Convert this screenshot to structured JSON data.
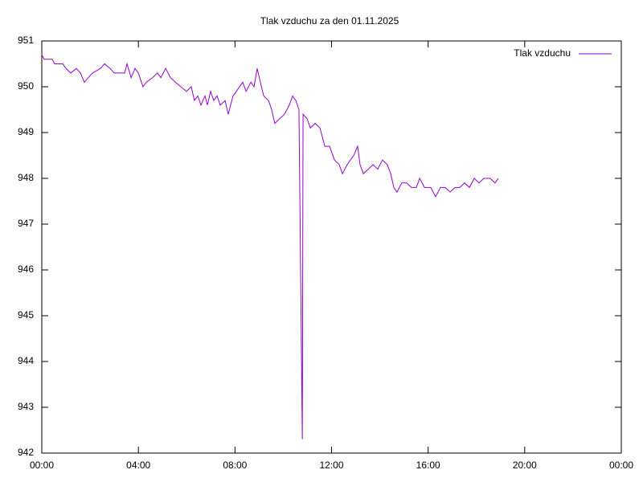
{
  "chart_data": {
    "type": "line",
    "title": "Tlak vzduchu za den 01.11.2025",
    "x": [
      0,
      0.1,
      0.43,
      0.53,
      0.87,
      1.0,
      1.2,
      1.43,
      1.6,
      1.76,
      1.93,
      2.1,
      2.43,
      2.6,
      2.83,
      3.0,
      3.43,
      3.53,
      3.7,
      3.86,
      4.0,
      4.19,
      4.33,
      4.59,
      4.79,
      4.93,
      5.13,
      5.33,
      5.53,
      5.76,
      5.99,
      6.19,
      6.32,
      6.46,
      6.59,
      6.76,
      6.86,
      6.99,
      7.12,
      7.26,
      7.39,
      7.59,
      7.72,
      7.92,
      8.06,
      8.19,
      8.32,
      8.46,
      8.66,
      8.79,
      8.92,
      9.05,
      9.19,
      9.39,
      9.52,
      9.65,
      9.85,
      10.05,
      10.25,
      10.39,
      10.52,
      10.65,
      10.72,
      10.79,
      10.82,
      10.99,
      11.12,
      11.32,
      11.52,
      11.72,
      11.92,
      12.12,
      12.32,
      12.45,
      12.65,
      12.78,
      12.92,
      13.08,
      13.18,
      13.32,
      13.52,
      13.72,
      13.91,
      14.11,
      14.31,
      14.45,
      14.58,
      14.71,
      14.91,
      15.11,
      15.31,
      15.51,
      15.65,
      15.85,
      16.11,
      16.31,
      16.51,
      16.71,
      16.91,
      17.11,
      17.31,
      17.51,
      17.71,
      17.91,
      18.11,
      18.31,
      18.57,
      18.77,
      18.91
    ],
    "series": [
      {
        "name": "Tlak vzduchu",
        "color": "#9400d3",
        "values": [
          950.7,
          950.6,
          950.6,
          950.5,
          950.5,
          950.4,
          950.3,
          950.4,
          950.3,
          950.1,
          950.2,
          950.3,
          950.4,
          950.5,
          950.4,
          950.3,
          950.3,
          950.5,
          950.2,
          950.4,
          950.3,
          950.0,
          950.1,
          950.2,
          950.3,
          950.2,
          950.4,
          950.2,
          950.1,
          950.0,
          949.9,
          950.0,
          949.7,
          949.8,
          949.6,
          949.8,
          949.6,
          949.9,
          949.7,
          949.8,
          949.6,
          949.7,
          949.4,
          949.8,
          949.9,
          950.0,
          950.1,
          949.9,
          950.1,
          950.0,
          950.4,
          950.1,
          949.8,
          949.7,
          949.5,
          949.2,
          949.3,
          949.4,
          949.6,
          949.8,
          949.7,
          949.5,
          945.9,
          942.3,
          949.4,
          949.3,
          949.1,
          949.2,
          949.1,
          948.7,
          948.7,
          948.4,
          948.3,
          948.1,
          948.3,
          948.4,
          948.5,
          948.7,
          948.3,
          948.1,
          948.2,
          948.3,
          948.2,
          948.4,
          948.3,
          948.1,
          947.8,
          947.7,
          947.9,
          947.9,
          947.8,
          947.8,
          948.0,
          947.8,
          947.8,
          947.6,
          947.8,
          947.8,
          947.7,
          947.8,
          947.8,
          947.9,
          947.8,
          948.0,
          947.9,
          948.0,
          948.0,
          947.9,
          948.0
        ]
      }
    ],
    "xlim": [
      0,
      24
    ],
    "xticks": [
      {
        "value": 0,
        "label": "00:00"
      },
      {
        "value": 4,
        "label": "04:00"
      },
      {
        "value": 8,
        "label": "08:00"
      },
      {
        "value": 12,
        "label": "12:00"
      },
      {
        "value": 16,
        "label": "16:00"
      },
      {
        "value": 20,
        "label": "20:00"
      },
      {
        "value": 24,
        "label": "00:00"
      }
    ],
    "ylim": [
      942,
      951
    ],
    "yticks": [
      942,
      943,
      944,
      945,
      946,
      947,
      948,
      949,
      950,
      951
    ],
    "grid": false,
    "legend": "top-right"
  }
}
